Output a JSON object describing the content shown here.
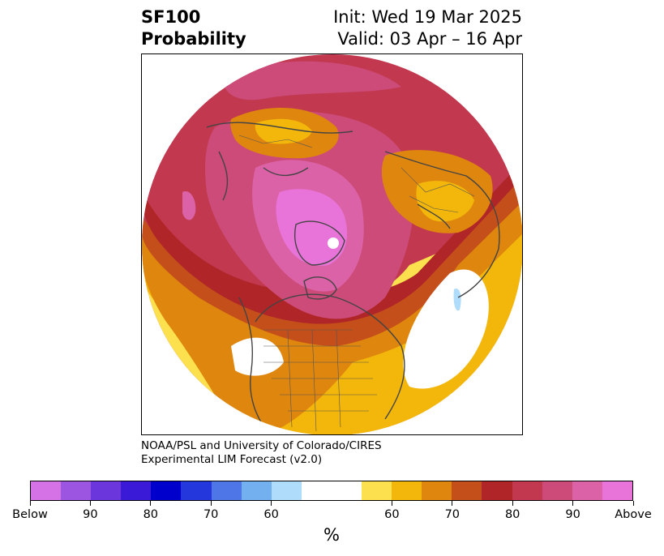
{
  "title": {
    "left_line1": "SF100",
    "left_line2": "Probability",
    "right_line1": "Init: Wed 19 Mar 2025",
    "right_line2": "Valid: 03 Apr – 16 Apr"
  },
  "credit": {
    "line1": "NOAA/PSL and University of Colorado/CIRES",
    "line2": "Experimental LIM Forecast (v2.0)"
  },
  "colorbar": {
    "unit": "%",
    "colors": [
      "#d573e6",
      "#9b55e0",
      "#6b37dc",
      "#3a1ad6",
      "#0000cc",
      "#2437dd",
      "#4f76e6",
      "#72b0f0",
      "#aedcfa",
      "#ffffff",
      "#ffffff",
      "#fde04d",
      "#f3b60a",
      "#df860e",
      "#c44f1a",
      "#b02528",
      "#c1384f",
      "#cc4b78",
      "#db62a7",
      "#e874d9"
    ],
    "labels": [
      "Below",
      "90",
      "80",
      "70",
      "60",
      "60",
      "70",
      "80",
      "90",
      "Above"
    ]
  },
  "colors": {
    "above_60": "#fde04d",
    "above_65": "#f3b60a",
    "above_70": "#df860e",
    "above_75": "#c44f1a",
    "above_80": "#b02528",
    "above_85": "#c1384f",
    "above_90": "#cc4b78",
    "above_95": "#db62a7",
    "above_max": "#e874d9",
    "below_60": "#aedcfa",
    "coastline": "#444444"
  }
}
